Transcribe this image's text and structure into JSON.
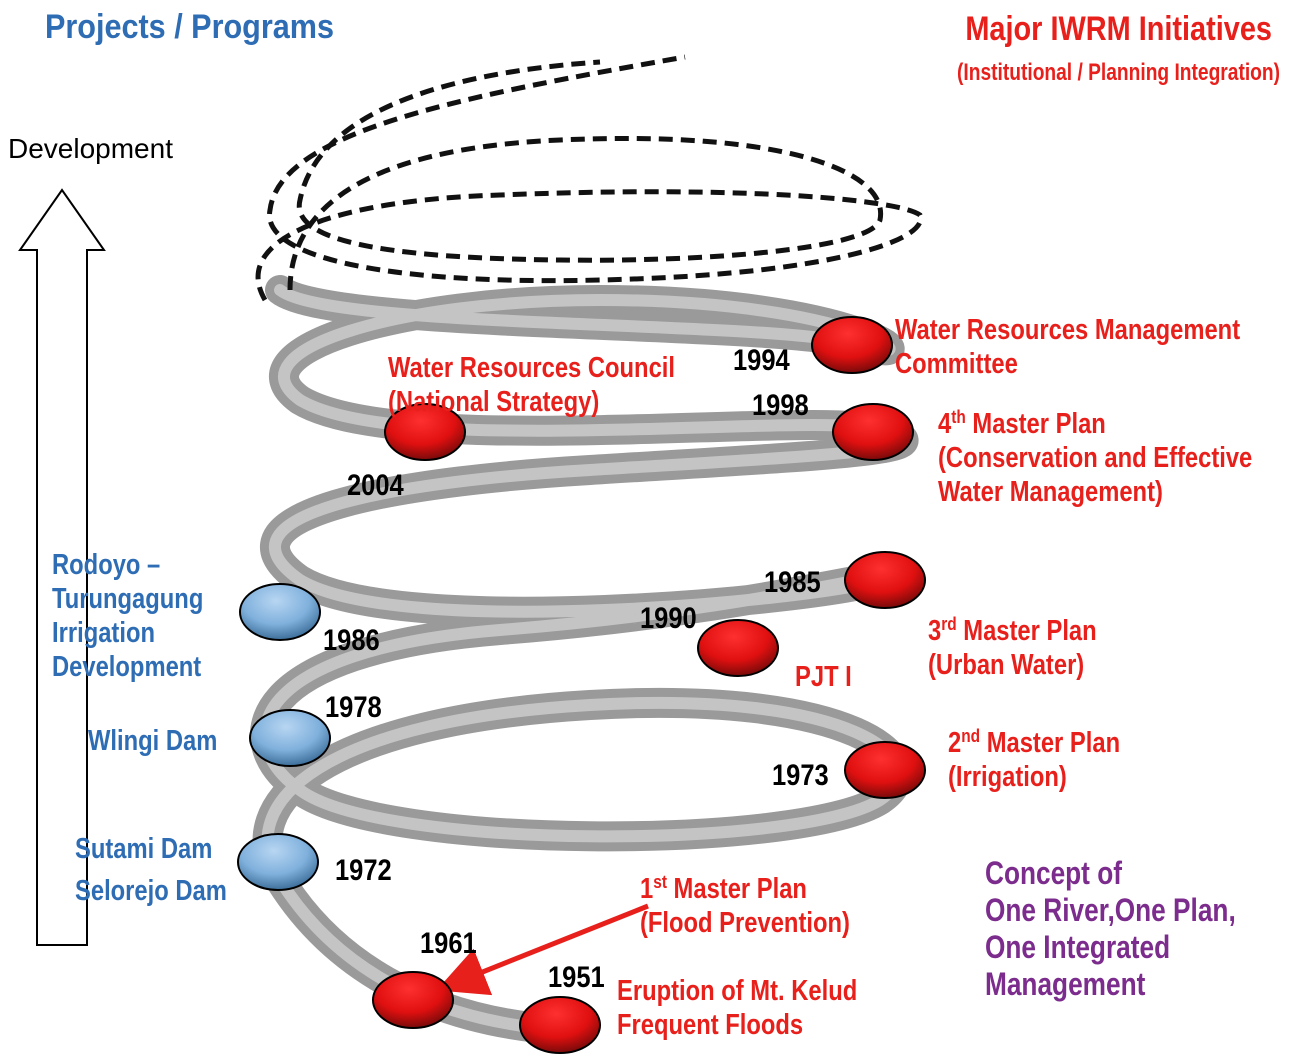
{
  "headings": {
    "left": "Projects / Programs",
    "right": "Major IWRM Initiatives",
    "right_sub": "(Institutional / Planning Integration)"
  },
  "axis_label": "Development",
  "concept": [
    "Concept of",
    "One River,One Plan,",
    "One Integrated",
    "Management"
  ],
  "nodes": [
    {
      "year": "1951",
      "kind": "initiative",
      "lines": [
        "Eruption of Mt. Kelud",
        "Frequent Floods"
      ]
    },
    {
      "year": "1961",
      "kind": "initiative",
      "lines": [
        {
          "pre": "1",
          "sup": "st",
          "post": " Master Plan"
        },
        "(Flood Prevention)"
      ]
    },
    {
      "year": "1972",
      "kind": "project",
      "lines": [
        "Sutami Dam",
        "Selorejo Dam"
      ]
    },
    {
      "year": "1973",
      "kind": "initiative",
      "lines": [
        {
          "pre": "2",
          "sup": "nd",
          "post": " Master Plan"
        },
        "(Irrigation)"
      ]
    },
    {
      "year": "1978",
      "kind": "project",
      "lines": [
        "Wlingi Dam"
      ]
    },
    {
      "year": "1985",
      "kind": "initiative",
      "lines": [
        {
          "pre": "3",
          "sup": "rd",
          "post": " Master Plan"
        },
        "(Urban Water)"
      ]
    },
    {
      "year": "1990",
      "kind": "initiative",
      "lines": [
        "PJT I"
      ]
    },
    {
      "year": "1986",
      "kind": "project",
      "lines": [
        "Rodoyo –",
        "Turungagung",
        "Irrigation",
        "Development"
      ]
    },
    {
      "year": "2004",
      "kind": "initiative",
      "lines": [
        "Water Resources Council",
        "(National Strategy)"
      ]
    },
    {
      "year": "1998",
      "kind": "initiative",
      "lines": [
        {
          "pre": "4",
          "sup": "th",
          "post": " Master Plan"
        },
        " (Conservation and Effective",
        "  Water Management)"
      ]
    },
    {
      "year": "1994",
      "kind": "initiative",
      "lines": [
        "Water Resources Management",
        "Committee"
      ]
    }
  ]
}
